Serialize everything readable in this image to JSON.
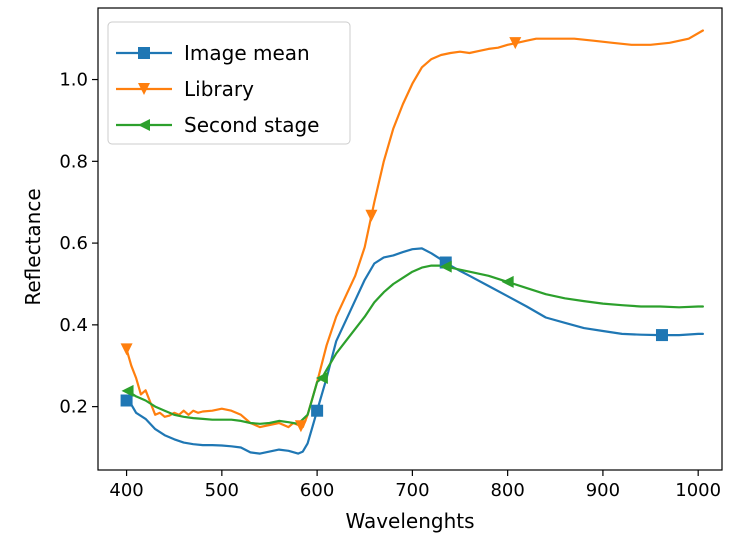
{
  "chart_data": {
    "type": "line",
    "title": "",
    "xlabel": "Wavelenghts",
    "ylabel": "Reflectance",
    "xlim": [
      370,
      1025
    ],
    "ylim": [
      0.045,
      1.175
    ],
    "xticks": [
      400,
      500,
      600,
      700,
      800,
      900,
      1000
    ],
    "yticks": [
      0.2,
      0.4,
      0.6,
      0.8,
      1.0
    ],
    "xtick_labels": [
      "400",
      "500",
      "600",
      "700",
      "800",
      "900",
      "1000"
    ],
    "ytick_labels": [
      "0.2",
      "0.4",
      "0.6",
      "0.8",
      "1.0"
    ],
    "grid": false,
    "legend_position": "top-left",
    "series": [
      {
        "name": "Image mean",
        "color": "#1f77b4",
        "marker": "square",
        "x": [
          400,
          405,
          410,
          420,
          430,
          440,
          450,
          460,
          470,
          480,
          490,
          500,
          510,
          520,
          530,
          540,
          550,
          560,
          570,
          580,
          585,
          590,
          595,
          600,
          610,
          620,
          630,
          640,
          650,
          660,
          670,
          680,
          690,
          700,
          710,
          720,
          730,
          740,
          750,
          760,
          780,
          800,
          820,
          840,
          860,
          880,
          900,
          920,
          940,
          960,
          980,
          1000,
          1005
        ],
        "y": [
          0.215,
          0.205,
          0.185,
          0.17,
          0.145,
          0.13,
          0.12,
          0.112,
          0.108,
          0.106,
          0.106,
          0.105,
          0.103,
          0.1,
          0.088,
          0.085,
          0.09,
          0.095,
          0.092,
          0.085,
          0.09,
          0.11,
          0.15,
          0.19,
          0.27,
          0.36,
          0.41,
          0.46,
          0.51,
          0.55,
          0.565,
          0.57,
          0.578,
          0.585,
          0.587,
          0.575,
          0.56,
          0.545,
          0.532,
          0.52,
          0.495,
          0.47,
          0.445,
          0.418,
          0.405,
          0.392,
          0.385,
          0.378,
          0.376,
          0.375,
          0.375,
          0.378,
          0.378
        ],
        "marker_x": [
          400,
          600,
          735,
          962
        ]
      },
      {
        "name": "Library",
        "color": "#ff7f0e",
        "marker": "triangle-down",
        "x": [
          400,
          405,
          410,
          415,
          420,
          425,
          430,
          435,
          440,
          445,
          450,
          455,
          460,
          465,
          470,
          475,
          480,
          490,
          500,
          510,
          520,
          530,
          540,
          550,
          560,
          570,
          575,
          580,
          585,
          590,
          600,
          610,
          620,
          630,
          640,
          650,
          660,
          670,
          680,
          690,
          700,
          710,
          720,
          730,
          740,
          750,
          760,
          770,
          780,
          790,
          800,
          810,
          820,
          830,
          840,
          850,
          870,
          890,
          910,
          930,
          950,
          970,
          990,
          1005
        ],
        "y": [
          0.34,
          0.3,
          0.27,
          0.23,
          0.24,
          0.21,
          0.18,
          0.185,
          0.175,
          0.178,
          0.185,
          0.18,
          0.19,
          0.18,
          0.19,
          0.185,
          0.188,
          0.19,
          0.195,
          0.19,
          0.18,
          0.16,
          0.15,
          0.155,
          0.16,
          0.15,
          0.16,
          0.155,
          0.15,
          0.18,
          0.26,
          0.35,
          0.42,
          0.47,
          0.52,
          0.59,
          0.7,
          0.8,
          0.88,
          0.94,
          0.99,
          1.03,
          1.05,
          1.06,
          1.065,
          1.068,
          1.065,
          1.07,
          1.075,
          1.078,
          1.085,
          1.09,
          1.095,
          1.1,
          1.1,
          1.1,
          1.1,
          1.095,
          1.09,
          1.085,
          1.085,
          1.09,
          1.1,
          1.12
        ],
        "marker_x": [
          400,
          583,
          657,
          808
        ]
      },
      {
        "name": "Second stage",
        "color": "#2ca02c",
        "marker": "triangle-left",
        "x": [
          400,
          410,
          420,
          430,
          440,
          450,
          460,
          470,
          480,
          490,
          500,
          510,
          520,
          530,
          540,
          550,
          560,
          570,
          580,
          590,
          595,
          600,
          605,
          610,
          620,
          630,
          640,
          650,
          660,
          670,
          680,
          690,
          700,
          710,
          720,
          730,
          740,
          750,
          760,
          780,
          800,
          820,
          840,
          860,
          880,
          900,
          920,
          940,
          960,
          980,
          1000,
          1005
        ],
        "y": [
          0.24,
          0.225,
          0.215,
          0.2,
          0.19,
          0.18,
          0.175,
          0.172,
          0.17,
          0.168,
          0.168,
          0.168,
          0.165,
          0.16,
          0.158,
          0.16,
          0.165,
          0.162,
          0.158,
          0.18,
          0.22,
          0.26,
          0.27,
          0.29,
          0.33,
          0.36,
          0.39,
          0.42,
          0.455,
          0.48,
          0.5,
          0.515,
          0.53,
          0.54,
          0.545,
          0.545,
          0.54,
          0.535,
          0.53,
          0.52,
          0.505,
          0.49,
          0.475,
          0.465,
          0.458,
          0.452,
          0.448,
          0.445,
          0.445,
          0.443,
          0.445,
          0.445
        ],
        "marker_x": [
          401,
          605,
          735,
          800
        ]
      }
    ]
  }
}
